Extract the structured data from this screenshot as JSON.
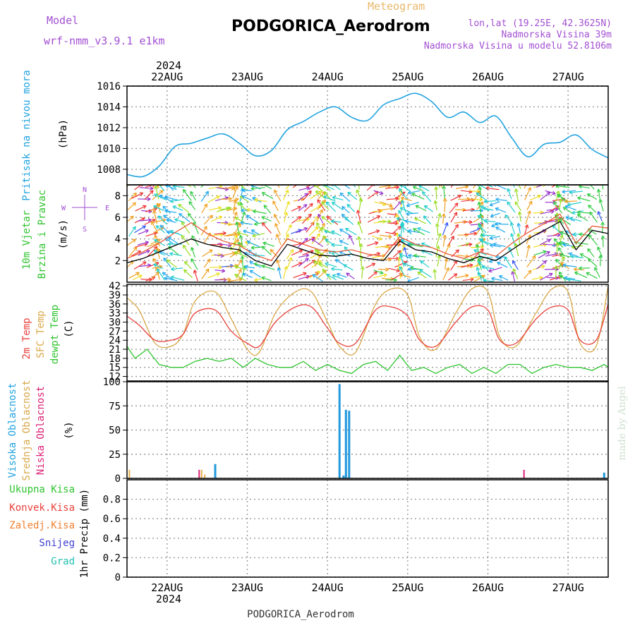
{
  "header": {
    "model_label": "Model",
    "model_name": "wrf-nmm_v3.9.1 e1km",
    "meteogram_label": "Meteogram",
    "station": "PODGORICA_Aerodrom",
    "lonlat": "lon,lat (19.25E, 42.3625N)",
    "elevation": "Nadmorska Visina 39m",
    "model_elevation": "Nadmorska Visina u modelu 52.8106m",
    "footer_station": "PODGORICA_Aerodrom",
    "watermark": "made by Angel"
  },
  "colors": {
    "pressure": "#22a3e0",
    "t2m": "#e8413c",
    "sfc": "#d9a84a",
    "dew": "#2fc42f",
    "high_cloud": "#2299dd",
    "mid_cloud": "#e8b04a",
    "low_cloud": "#dd2277",
    "purple": "#a24fd2",
    "meteogram_title": "#e8b86a"
  },
  "chart_data": [
    {
      "type": "line",
      "panel": "pressure",
      "title": "Pritisak na nivou mora",
      "ylabel": "(hPa)",
      "ylim": [
        1006.5,
        1016
      ],
      "yticks": [
        1008,
        1010,
        1012,
        1014,
        1016
      ],
      "x_day": [
        0,
        0.2,
        0.4,
        0.6,
        0.8,
        1.0,
        1.2,
        1.4,
        1.6,
        1.8,
        2.0,
        2.2,
        2.4,
        2.6,
        2.8,
        3.0,
        3.2,
        3.4,
        3.6,
        3.8,
        4.0,
        4.2,
        4.4,
        4.6,
        4.8,
        5.0,
        5.2,
        5.4,
        5.6,
        5.8,
        6.0
      ],
      "values": [
        1007.5,
        1007.3,
        1008.3,
        1010.2,
        1010.5,
        1011.0,
        1011.4,
        1010.5,
        1009.3,
        1009.8,
        1011.8,
        1012.6,
        1013.5,
        1014.0,
        1013.0,
        1012.7,
        1014.2,
        1014.8,
        1015.3,
        1014.5,
        1013.0,
        1013.5,
        1012.5,
        1013.1,
        1011.0,
        1009.2,
        1010.4,
        1010.6,
        1011.3,
        1009.9,
        1009.1
      ]
    },
    {
      "type": "line",
      "panel": "wind",
      "title": "10m Vjetar Brzina i Pravac",
      "ylabel": "(m/s)",
      "ylim": [
        0,
        9
      ],
      "yticks": [
        2,
        4,
        6,
        8
      ],
      "compass_labels": [
        "N",
        "W",
        "E",
        "S"
      ],
      "x_day": [
        0,
        0.2,
        0.4,
        0.6,
        0.8,
        1.0,
        1.2,
        1.4,
        1.6,
        1.8,
        2.0,
        2.2,
        2.4,
        2.6,
        2.8,
        3.0,
        3.2,
        3.4,
        3.6,
        3.8,
        4.0,
        4.2,
        4.4,
        4.6,
        4.8,
        5.0,
        5.2,
        5.4,
        5.6,
        5.8,
        6.0
      ],
      "speed": [
        1.8,
        2.2,
        2.8,
        3.4,
        4.0,
        3.5,
        3.2,
        3.0,
        2.0,
        1.5,
        3.5,
        3.0,
        2.5,
        2.4,
        2.6,
        2.2,
        2.0,
        3.8,
        3.0,
        2.8,
        2.2,
        1.8,
        2.4,
        2.0,
        3.0,
        4.0,
        4.8,
        5.6,
        3.0,
        4.8,
        4.5
      ],
      "gust": [
        2.2,
        2.8,
        3.6,
        4.6,
        5.5,
        4.5,
        3.8,
        3.4,
        2.5,
        2.0,
        4.0,
        3.5,
        3.0,
        2.8,
        3.0,
        2.6,
        2.4,
        4.2,
        3.5,
        3.2,
        2.6,
        2.2,
        2.8,
        2.4,
        3.6,
        4.6,
        5.4,
        6.3,
        3.6,
        5.2,
        5.0
      ]
    },
    {
      "type": "line",
      "panel": "temperature",
      "title": "2m Temp / SFC Temp / dewpt Temp",
      "ylabel": "(C)",
      "ylim": [
        10.5,
        42.5
      ],
      "yticks": [
        12,
        15,
        18,
        21,
        24,
        27,
        30,
        33,
        36,
        39,
        42
      ],
      "series": [
        {
          "name": "2m Temp",
          "x_day": [
            0,
            0.15,
            0.35,
            0.55,
            0.7,
            0.85,
            1.1,
            1.3,
            1.5,
            1.65,
            1.85,
            2.1,
            2.3,
            2.5,
            2.65,
            2.85,
            3.1,
            3.3,
            3.5,
            3.65,
            3.85,
            4.1,
            4.3,
            4.5,
            4.65,
            4.85,
            5.1,
            5.3,
            5.5,
            5.65,
            5.85,
            6.0
          ],
          "values": [
            32,
            29,
            24,
            24,
            26,
            33,
            34,
            27,
            23,
            22,
            30,
            35,
            35,
            28,
            23,
            23,
            34,
            35,
            32,
            24,
            22,
            30,
            35,
            34,
            24,
            23,
            31,
            35,
            34,
            24,
            24,
            36
          ]
        },
        {
          "name": "SFC Temp",
          "x_day": [
            0,
            0.15,
            0.35,
            0.55,
            0.7,
            0.85,
            1.1,
            1.3,
            1.5,
            1.65,
            1.85,
            2.1,
            2.3,
            2.5,
            2.65,
            2.85,
            3.1,
            3.3,
            3.5,
            3.65,
            3.85,
            4.1,
            4.3,
            4.5,
            4.65,
            4.85,
            5.1,
            5.3,
            5.5,
            5.65,
            5.85,
            6.0
          ],
          "values": [
            38,
            34,
            23,
            22,
            26,
            37,
            40,
            31,
            21,
            20,
            33,
            40,
            40,
            30,
            22,
            20,
            36,
            41,
            39,
            25,
            21,
            33,
            41,
            40,
            25,
            22,
            33,
            41,
            40,
            23,
            22,
            42
          ]
        },
        {
          "name": "dewpt Temp",
          "x_day": [
            0,
            0.1,
            0.25,
            0.4,
            0.55,
            0.7,
            0.85,
            1.0,
            1.15,
            1.3,
            1.45,
            1.6,
            1.75,
            1.9,
            2.05,
            2.2,
            2.35,
            2.5,
            2.65,
            2.8,
            2.95,
            3.1,
            3.25,
            3.4,
            3.55,
            3.7,
            3.85,
            4.0,
            4.15,
            4.3,
            4.45,
            4.6,
            4.75,
            4.9,
            5.05,
            5.2,
            5.35,
            5.5,
            5.65,
            5.8,
            5.95,
            6.0
          ],
          "values": [
            22,
            18,
            21,
            16,
            15,
            15,
            17,
            18,
            17,
            18,
            15,
            18,
            16,
            15,
            15,
            17,
            14,
            16,
            14,
            13,
            16,
            17,
            14,
            19,
            14,
            15,
            13,
            15,
            16,
            13,
            15,
            13,
            16,
            16,
            13,
            15,
            16,
            15,
            15,
            14,
            16,
            15
          ]
        }
      ]
    },
    {
      "type": "bar",
      "panel": "clouds",
      "title": "Visoka Oblacnost / Srednja Oblacnost / Niska Oblacnost",
      "ylabel": "(%)",
      "ylim": [
        0,
        100
      ],
      "yticks": [
        0,
        25,
        50,
        75,
        100
      ],
      "series": [
        {
          "name": "Visoka Oblacnost",
          "x_day": [
            1.1,
            2.65,
            2.7,
            2.73,
            2.77,
            5.95
          ],
          "values": [
            15,
            99,
            3,
            72,
            71,
            6
          ]
        },
        {
          "name": "Srednja Oblacnost",
          "x_day": [
            0.03,
            0.93,
            0.97
          ],
          "values": [
            9,
            9,
            4
          ]
        },
        {
          "name": "Niska Oblacnost",
          "x_day": [
            0.9,
            4.95
          ],
          "values": [
            9,
            9
          ]
        }
      ]
    },
    {
      "type": "bar",
      "panel": "precip",
      "title": "1hr Precip",
      "ylabel": "(mm)",
      "ylim": [
        0,
        1
      ],
      "yticks": [
        0,
        0.2,
        0.4,
        0.6,
        0.8
      ],
      "series": [
        {
          "name": "Ukupna Kisa",
          "values": []
        },
        {
          "name": "Konvek.Kisa",
          "values": []
        },
        {
          "name": "Zaledj.Kisa",
          "values": []
        },
        {
          "name": "Snijeg",
          "values": []
        },
        {
          "name": "Grad",
          "values": []
        }
      ]
    }
  ],
  "axes": {
    "year": "2024",
    "days": [
      "22AUG",
      "23AUG",
      "24AUG",
      "25AUG",
      "26AUG",
      "27AUG"
    ],
    "days_ticks_x": [
      0.5,
      1.5,
      2.5,
      3.5,
      4.5,
      5.5
    ]
  },
  "labels": {
    "pressure": [
      "Pritisak na nivou mora"
    ],
    "pressure_unit": "(hPa)",
    "wind": [
      "10m Vjetar",
      "Brzina i Pravac"
    ],
    "wind_unit": "(m/s)",
    "temp": [
      "2m Temp",
      "SFC Temp",
      "dewpt Temp"
    ],
    "temp_unit": "(C)",
    "cloud": [
      "Visoka Oblacnost",
      "Srednja Oblacnost",
      "Niska Oblacnost"
    ],
    "cloud_unit": "(%)",
    "precip": [
      "Ukupna Kisa",
      "Konvek.Kisa",
      "Zaledj.Kisa",
      "Snijeg",
      "Grad"
    ],
    "precip_unit": "1hr Precip (mm)"
  }
}
